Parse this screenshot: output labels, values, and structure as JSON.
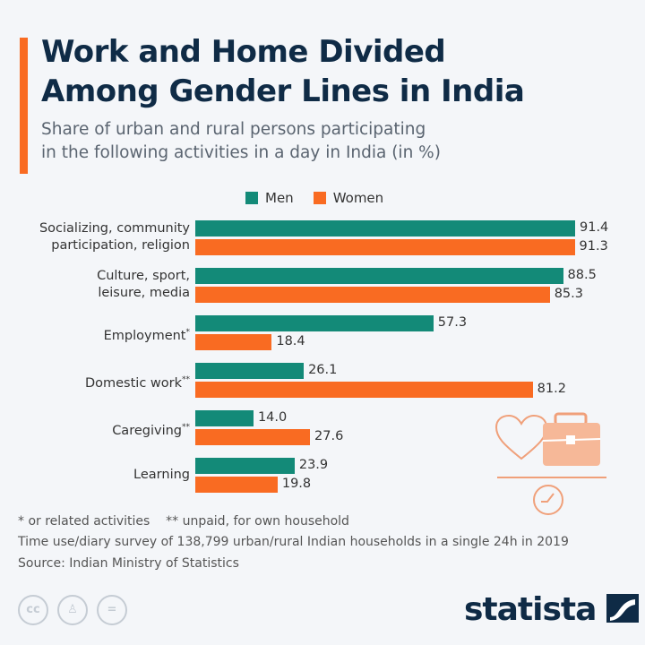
{
  "header": {
    "title_line1": "Work and Home Divided",
    "title_line2": "Among Gender Lines in India",
    "subtitle_line1": "Share of urban and rural persons participating",
    "subtitle_line2": "in the following activities in a day in India (in %)"
  },
  "chart_data": {
    "type": "bar",
    "orientation": "horizontal",
    "categories": [
      [
        "Socializing, community",
        "participation, religion"
      ],
      [
        "Culture, sport,",
        "leisure, media"
      ],
      [
        "Employment*"
      ],
      [
        "Domestic work**"
      ],
      [
        "Caregiving**"
      ],
      [
        "Learning"
      ]
    ],
    "series": [
      {
        "name": "Men",
        "color": "#138a78",
        "values": [
          91.4,
          88.5,
          57.3,
          26.1,
          14.0,
          23.9
        ]
      },
      {
        "name": "Women",
        "color": "#f96b22",
        "values": [
          91.3,
          85.3,
          18.4,
          81.2,
          27.6,
          19.8
        ]
      }
    ],
    "legend": "top",
    "xlim": [
      0,
      100
    ],
    "unit": "%"
  },
  "footer": {
    "note1": "* or related activities",
    "note2": "** unpaid, for own household",
    "note3": "Time use/diary survey of 138,799 urban/rural Indian households in a single 24h in 2019",
    "source": "Source: Indian Ministry of Statistics"
  },
  "brand": {
    "logo": "statista",
    "license_icons": [
      "cc",
      "by",
      "nd"
    ]
  }
}
